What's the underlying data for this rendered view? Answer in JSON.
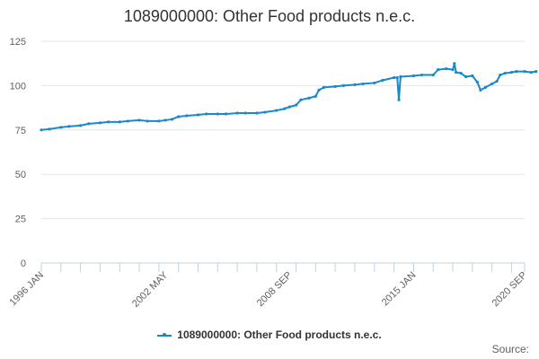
{
  "chart_data": {
    "type": "line",
    "title": "1089000000: Other Food products n.e.c.",
    "xlabel": "",
    "ylabel": "",
    "ylim": [
      0,
      125
    ],
    "yticks": [
      0,
      25,
      50,
      75,
      100,
      125
    ],
    "xlim": [
      "1996-01",
      "2020-09"
    ],
    "xticks": [
      "1996 JAN",
      "2002 MAY",
      "2008 SEP",
      "2015 JAN",
      "2020 SEP"
    ],
    "grid": "horizontal",
    "legend_position": "bottom",
    "color": "#1a88c9",
    "series": [
      {
        "name": "1089000000: Other Food products n.e.c.",
        "points": [
          [
            "1996-01",
            75
          ],
          [
            "1996-06",
            75.5
          ],
          [
            "1997-01",
            76.5
          ],
          [
            "1997-06",
            77
          ],
          [
            "1998-01",
            77.5
          ],
          [
            "1998-06",
            78.5
          ],
          [
            "1999-01",
            79
          ],
          [
            "1999-06",
            79.5
          ],
          [
            "2000-01",
            79.5
          ],
          [
            "2000-06",
            80
          ],
          [
            "2001-01",
            80.5
          ],
          [
            "2001-06",
            80
          ],
          [
            "2002-01",
            80
          ],
          [
            "2002-05",
            80.5
          ],
          [
            "2002-09",
            81
          ],
          [
            "2003-01",
            82.5
          ],
          [
            "2003-06",
            83
          ],
          [
            "2004-01",
            83.5
          ],
          [
            "2004-06",
            84
          ],
          [
            "2005-01",
            84
          ],
          [
            "2005-06",
            84
          ],
          [
            "2006-01",
            84.5
          ],
          [
            "2006-06",
            84.5
          ],
          [
            "2007-01",
            84.5
          ],
          [
            "2007-06",
            85
          ],
          [
            "2008-01",
            86
          ],
          [
            "2008-06",
            87
          ],
          [
            "2008-09",
            88
          ],
          [
            "2009-01",
            89
          ],
          [
            "2009-04",
            92
          ],
          [
            "2009-09",
            93
          ],
          [
            "2010-01",
            94
          ],
          [
            "2010-03",
            97.5
          ],
          [
            "2010-06",
            99
          ],
          [
            "2011-01",
            99.5
          ],
          [
            "2011-06",
            100
          ],
          [
            "2012-01",
            100.5
          ],
          [
            "2012-06",
            101
          ],
          [
            "2013-01",
            101.5
          ],
          [
            "2013-06",
            103
          ],
          [
            "2014-01",
            104.5
          ],
          [
            "2014-03",
            104.5
          ],
          [
            "2014-04",
            92
          ],
          [
            "2014-05",
            105
          ],
          [
            "2015-01",
            105.5
          ],
          [
            "2015-06",
            106
          ],
          [
            "2016-01",
            106
          ],
          [
            "2016-04",
            109
          ],
          [
            "2016-09",
            109.5
          ],
          [
            "2017-01",
            109
          ],
          [
            "2017-02",
            112.5
          ],
          [
            "2017-03",
            107.5
          ],
          [
            "2017-06",
            107
          ],
          [
            "2017-09",
            105
          ],
          [
            "2018-01",
            105.5
          ],
          [
            "2018-04",
            102
          ],
          [
            "2018-06",
            97.5
          ],
          [
            "2018-09",
            99
          ],
          [
            "2019-01",
            101
          ],
          [
            "2019-04",
            102.5
          ],
          [
            "2019-06",
            106
          ],
          [
            "2019-09",
            107
          ],
          [
            "2020-01",
            107.5
          ],
          [
            "2020-04",
            108
          ],
          [
            "2020-09",
            108
          ],
          [
            "2021-01",
            107.5
          ],
          [
            "2021-04",
            108
          ]
        ]
      }
    ],
    "source_label": "Source:"
  }
}
